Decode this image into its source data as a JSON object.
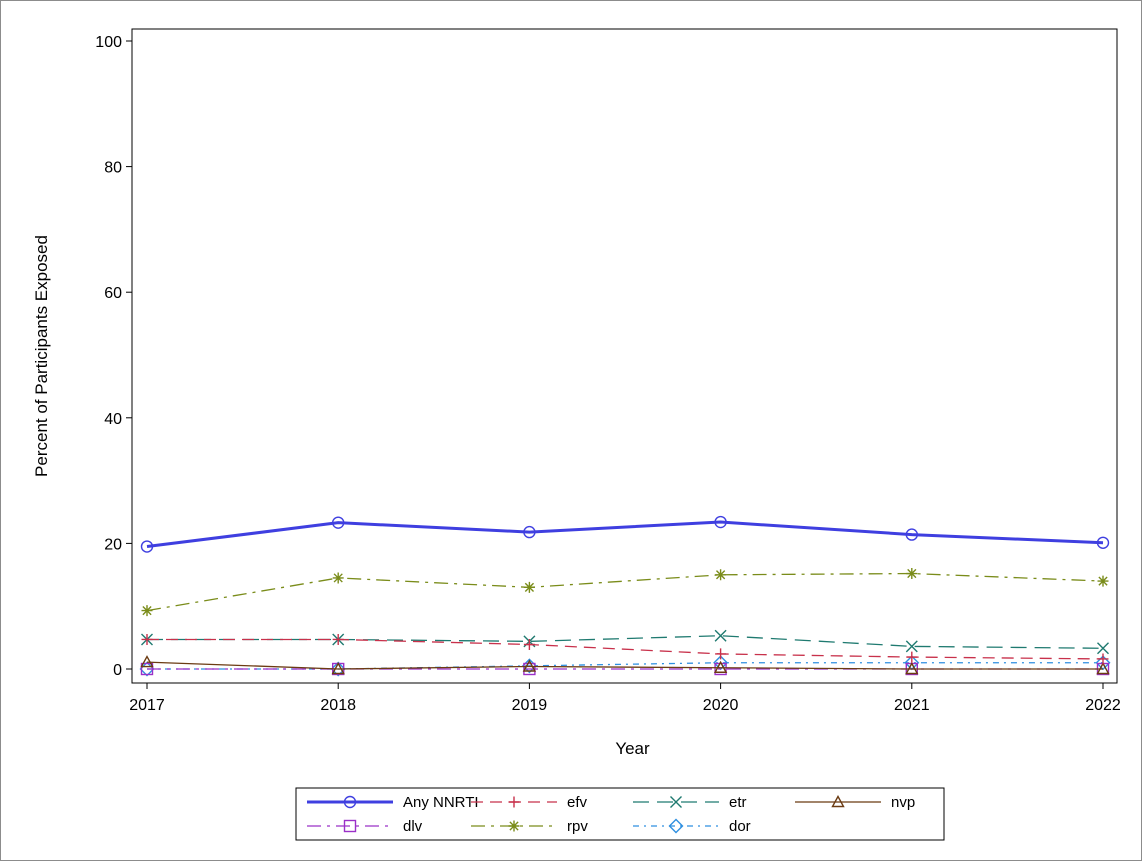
{
  "chart_data": {
    "type": "line",
    "title": "",
    "xlabel": "Year",
    "ylabel": "Percent of Participants Exposed",
    "x": [
      "2017",
      "2018",
      "2019",
      "2020",
      "2021",
      "2022"
    ],
    "ylim": [
      0,
      100
    ],
    "yticks": [
      "0",
      "20",
      "40",
      "60",
      "80",
      "100"
    ],
    "grid": false,
    "legend_position": "bottom",
    "series": [
      {
        "name": "Any NNRTI",
        "values": [
          19.5,
          23.3,
          21.8,
          23.4,
          21.4,
          20.1
        ],
        "color": "#3f3fe0",
        "marker": "circle",
        "dash": "solid",
        "bold": true
      },
      {
        "name": "efv",
        "values": [
          4.7,
          4.7,
          3.9,
          2.4,
          1.9,
          1.6
        ],
        "color": "#c8314b",
        "marker": "plus",
        "dash": "dash"
      },
      {
        "name": "etr",
        "values": [
          4.7,
          4.7,
          4.4,
          5.3,
          3.6,
          3.3
        ],
        "color": "#1f7a70",
        "marker": "x",
        "dash": "longdash"
      },
      {
        "name": "nvp",
        "values": [
          1.1,
          0.0,
          0.4,
          0.2,
          0.0,
          0.0
        ],
        "color": "#6b3b12",
        "marker": "triangle",
        "dash": "solid"
      },
      {
        "name": "dlv",
        "values": [
          0.0,
          0.0,
          0.0,
          0.0,
          0.0,
          0.0
        ],
        "color": "#9b30c8",
        "marker": "square",
        "dash": "dashdot"
      },
      {
        "name": "rpv",
        "values": [
          9.3,
          14.5,
          13.0,
          15.0,
          15.2,
          14.0
        ],
        "color": "#7a8c1a",
        "marker": "star",
        "dash": "dashdot"
      },
      {
        "name": "dor",
        "values": [
          0.0,
          0.0,
          0.5,
          1.0,
          1.0,
          1.0
        ],
        "color": "#2e8fe0",
        "marker": "diamond",
        "dash": "dotdash"
      }
    ]
  }
}
